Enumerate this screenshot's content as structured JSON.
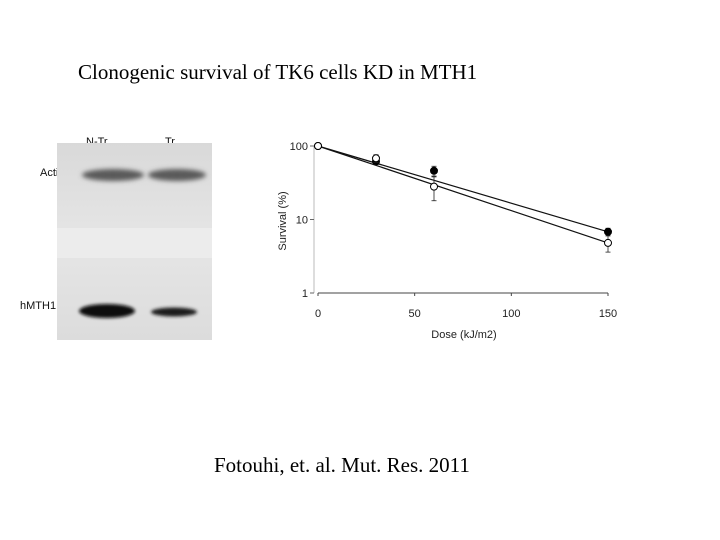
{
  "title": "Clonogenic survival of  TK6 cells KD in MTH1",
  "citation": "Fotouhi, et. al. Mut. Res. 2011",
  "western_blot": {
    "lanes": [
      "N-Tr",
      "Tr"
    ],
    "bands": [
      "Actin",
      "hMTH1"
    ]
  },
  "chart_data": {
    "type": "line",
    "xlabel": "Dose (kJ/m2)",
    "ylabel": "Survival (%)",
    "x_ticks": [
      "0",
      "50",
      "100",
      "150"
    ],
    "y_ticks": [
      "100",
      "10",
      "1"
    ],
    "xlim": [
      0,
      150
    ],
    "ylim": [
      1,
      100
    ],
    "y_scale": "log",
    "series": [
      {
        "marker": "filled-circle",
        "x": [
          0,
          30,
          60,
          150
        ],
        "y": [
          100,
          62,
          46,
          6.8
        ],
        "err": [
          3,
          6,
          7,
          0.8
        ]
      },
      {
        "marker": "open-circle",
        "x": [
          0,
          30,
          60,
          150
        ],
        "y": [
          100,
          68,
          28,
          4.8
        ],
        "err": [
          3,
          8,
          10,
          1.2
        ]
      }
    ]
  }
}
